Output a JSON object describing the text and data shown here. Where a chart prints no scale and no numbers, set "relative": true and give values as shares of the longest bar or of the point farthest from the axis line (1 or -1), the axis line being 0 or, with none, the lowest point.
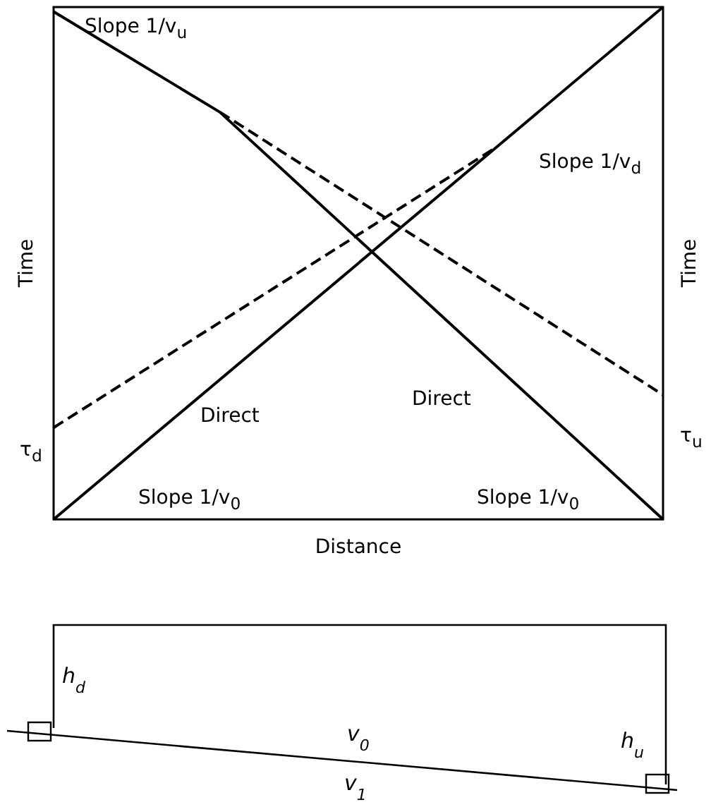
{
  "chart_data": {
    "type": "line",
    "relative": true,
    "xlabel": "Distance",
    "ylabel": "Time",
    "y2label": "Time",
    "categories": [
      null,
      null,
      null,
      null,
      null,
      null,
      null,
      null,
      null,
      null,
      null,
      null
    ],
    "series": [
      {
        "color": "#000000",
        "line_style": "solid",
        "values": [
          0,
          null,
          null,
          null,
          null,
          null,
          null,
          null,
          0.727,
          null,
          null,
          1
        ]
      },
      {
        "color": "#000000",
        "line_style": "dashed",
        "values": [
          0.179,
          null,
          null,
          null,
          null,
          null,
          null,
          null,
          0.727,
          null,
          null,
          null
        ]
      },
      {
        "color": "#000000",
        "line_style": "solid",
        "values": [
          0.991,
          null,
          null,
          0.795,
          null,
          null,
          null,
          null,
          null,
          null,
          null,
          0
        ]
      },
      {
        "color": "#000000",
        "line_style": "dashed",
        "values": [
          null,
          null,
          null,
          0.795,
          null,
          null,
          null,
          null,
          null,
          null,
          null,
          0.243
        ]
      }
    ],
    "annotations": [
      "Slope 1/v$_{u}$",
      "Slope 1/v$_{d}$",
      "Direct",
      "Direct",
      "Slope 1/v$_{0}$",
      "Slope 1/v$_{0}$",
      "τ$_{d}$",
      "τ$_{u}$",
      "h$_{d}$",
      "v$_{0}$",
      "h$_{u}$",
      "v$_{1}$"
    ],
    "grid": false,
    "marker": "none"
  }
}
